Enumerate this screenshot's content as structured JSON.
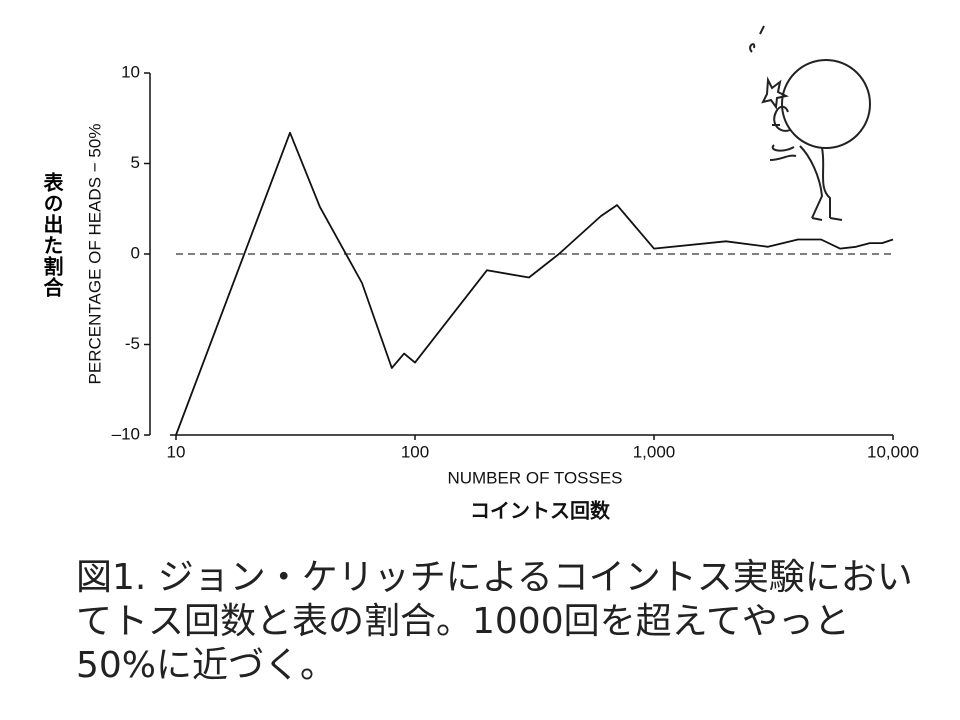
{
  "chart_data": {
    "type": "line",
    "y_label": "PERCENTAGE OF HEADS − 50%",
    "y_label_jp": "表の出た割合",
    "x_label": "NUMBER OF TOSSES",
    "x_label_jp": "コイントス回数",
    "caption": "図1. ジョン・ケリッチによるコイントス実験においてトス回数と表の割合。1000回を超えてやっと50%に近づく。",
    "x": [
      10,
      30,
      40,
      60,
      80,
      90,
      100,
      200,
      300,
      400,
      600,
      700,
      1000,
      2000,
      3000,
      4000,
      5000,
      6000,
      7000,
      8000,
      9000,
      10000
    ],
    "values": [
      -10,
      6.7,
      2.6,
      -1.6,
      -6.3,
      -5.5,
      -6.0,
      -0.9,
      -1.3,
      0,
      2.1,
      2.7,
      0.3,
      0.7,
      0.4,
      0.8,
      0.8,
      0.3,
      0.4,
      0.6,
      0.6,
      0.8
    ],
    "color": "#111111",
    "xscale": "log",
    "xlim": [
      10,
      10000
    ],
    "xticks": [
      10,
      100,
      {
        "value": 1000,
        "label": "1,000"
      },
      {
        "value": 10000,
        "label": "10,000"
      }
    ],
    "ylim": [
      -10,
      10
    ],
    "yticks": [
      {
        "value": -10,
        "label": "–10"
      },
      -5,
      0,
      5,
      10
    ],
    "hline": 0
  }
}
